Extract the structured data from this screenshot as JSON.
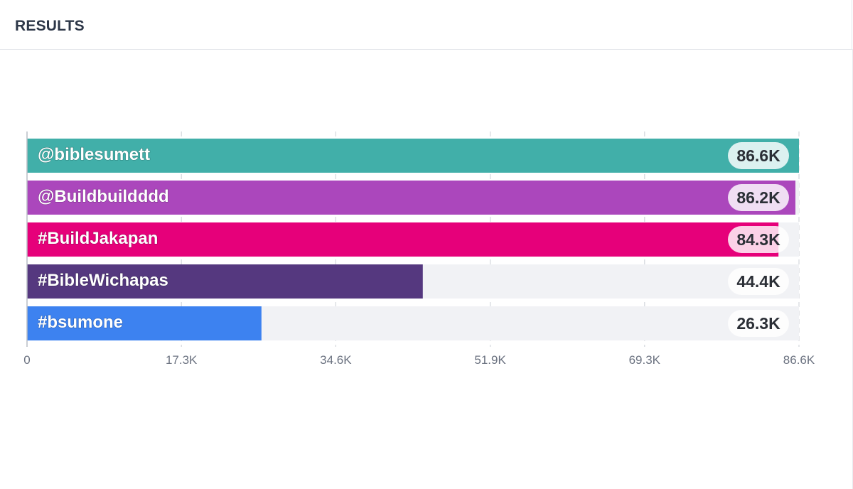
{
  "header": {
    "title": "RESULTS"
  },
  "chart_data": {
    "type": "bar",
    "orientation": "horizontal",
    "categories": [
      "@biblesumett",
      "@Buildbuildddd",
      "#BuildJakapan",
      "#BibleWichapas",
      "#bsumone"
    ],
    "values": [
      86600,
      86200,
      84300,
      44400,
      26300
    ],
    "value_labels": [
      "86.6K",
      "86.2K",
      "84.3K",
      "44.4K",
      "26.3K"
    ],
    "colors": [
      "#41afa9",
      "#ab47bc",
      "#e6007a",
      "#55387f",
      "#3d82f0"
    ],
    "track_color": "#f1f2f5",
    "xlim": [
      0,
      86600
    ],
    "xticks": [
      0,
      17320,
      34640,
      51960,
      69280,
      86600
    ],
    "xtick_labels": [
      "0",
      "17.3K",
      "34.6K",
      "51.9K",
      "69.3K",
      "86.6K"
    ],
    "grid": true,
    "title": "",
    "xlabel": "",
    "ylabel": ""
  }
}
